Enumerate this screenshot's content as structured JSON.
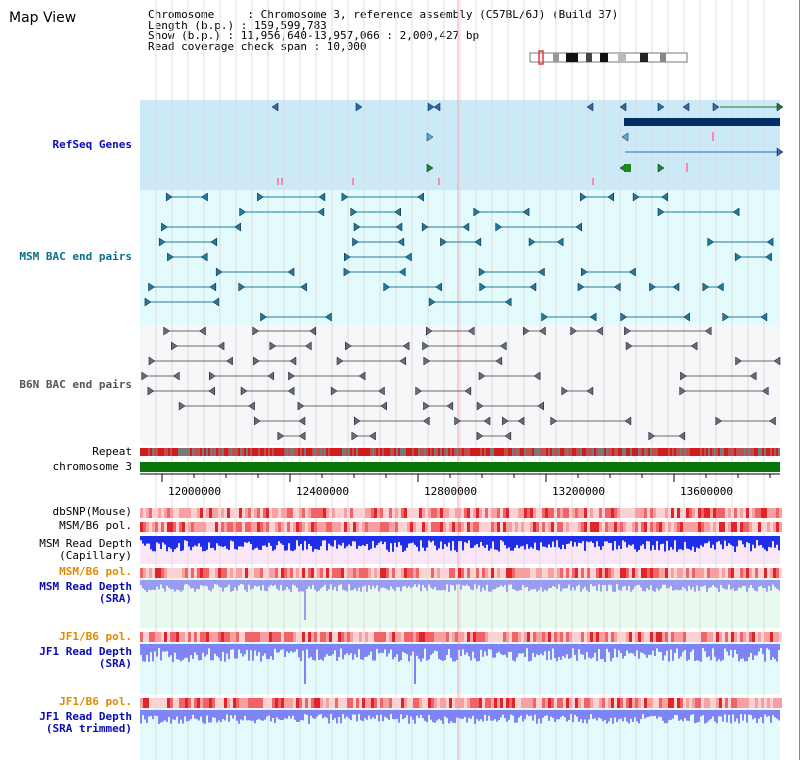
{
  "title": "Map View",
  "info": {
    "chromosome": "Chromosome     : Chromosome 3, reference assembly (C57BL/6J) (Build 37)",
    "length": "Length (b.p.) : 159,599,783",
    "show": "Show (b.p.) : 11,956,640-13,957,066 : 2,000,427 bp",
    "coverage": "Read coverage check span : 10,000"
  },
  "tracks": {
    "refseq": "RefSeq Genes",
    "msm_bac": "MSM BAC end pairs",
    "b6n_bac": "B6N BAC end pairs",
    "repeat": "Repeat",
    "chromosome": "chromosome 3",
    "dbsnp": "dbSNP(Mouse)",
    "msm_b6_pol_1": "MSM/B6 pol.",
    "msm_depth_cap_1": "MSM Read Depth",
    "msm_depth_cap_2": "(Capillary)",
    "msm_b6_pol_2": "MSM/B6 pol.",
    "msm_depth_sra_1": "MSM Read Depth",
    "msm_depth_sra_2": "(SRA)",
    "jf1_b6_pol_1": "JF1/B6 pol.",
    "jf1_depth_sra_1": "JF1 Read Depth",
    "jf1_depth_sra_2": "(SRA)",
    "jf1_b6_pol_2": "JF1/B6 pol.",
    "jf1_depth_trim_1": "JF1 Read Depth",
    "jf1_depth_trim_2": "(SRA trimmed)"
  },
  "axis": {
    "ticks": [
      "12000000",
      "12400000",
      "12800000",
      "13200000",
      "13600000"
    ]
  },
  "colors": {
    "refseq_bg": "#cce9f7",
    "msm_bg": "#e4fbfd",
    "b6n_bg": "#f5f7f9",
    "chromosome": "#077507",
    "depth_msm": "#1f2ee8",
    "depth_jf1": "#7e84f4",
    "pol": "#f2686b",
    "axis_label": "#000000",
    "orange_label": "#e08a00",
    "blue_label": "#0b0bb5",
    "teal_label": "#0b6f8a"
  }
}
